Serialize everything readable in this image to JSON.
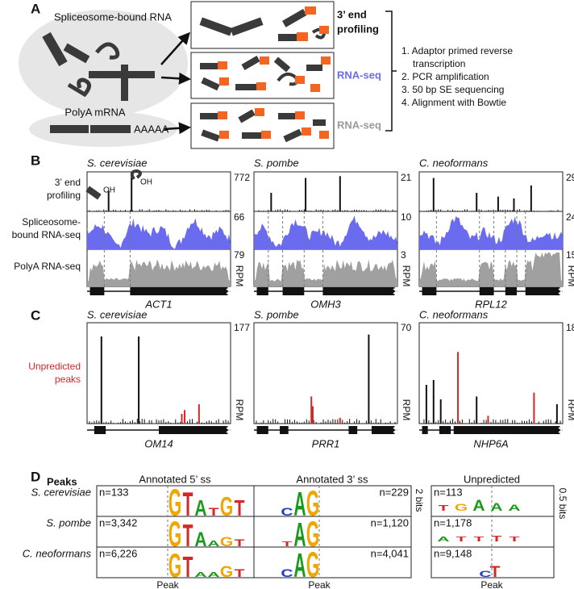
{
  "panel_a": {
    "label": "A",
    "sources": [
      "Spliceosome-bound RNA",
      "PolyA mRNA"
    ],
    "polya_tail": "AAAAA",
    "method_top": [
      "3’ end",
      "profiling"
    ],
    "method_mid": "RNA-seq",
    "method_bottom": "RNA-seq",
    "steps": [
      "1. Adaptor primed reverse",
      "transcription",
      "2. PCR amplification",
      "3. 50 bp SE sequencing",
      "4. Alignment with Bowtie"
    ]
  },
  "panel_b": {
    "label": "B",
    "oh": "OH",
    "unit": "RPM",
    "tracks": [
      [
        "3’ end",
        "profiling"
      ],
      [
        "Spliceosome-",
        "bound RNA-seq"
      ],
      [
        "PolyA RNA-seq"
      ]
    ],
    "columns": [
      {
        "species": "S. cerevisiae",
        "gene": "ACT1",
        "max": [
          772,
          66,
          79
        ]
      },
      {
        "species": "S. pombe",
        "gene": "OMH3",
        "max": [
          21,
          10,
          3
        ]
      },
      {
        "species": "C. neoformans",
        "gene": "RPL12",
        "max": [
          29,
          24,
          15
        ]
      }
    ]
  },
  "panel_c": {
    "label": "C",
    "track_label": [
      "Unpredicted",
      "peaks"
    ],
    "unit": "RPM",
    "columns": [
      {
        "species": "S. cerevisiae",
        "gene": "OM14",
        "max": 177
      },
      {
        "species": "S. pombe",
        "gene": "PRR1",
        "max": 70
      },
      {
        "species": "C. neoformans",
        "gene": "NHP6A",
        "max": 18
      }
    ]
  },
  "panel_d": {
    "label": "D",
    "header": "Peaks",
    "columns": [
      "Annotated 5’ ss",
      "Annotated 3’ ss",
      "Unpredicted"
    ],
    "scale": [
      "2 bits",
      "0.5 bits"
    ],
    "peak_label": "Peak",
    "rows": [
      {
        "species": "S. cerevisiae",
        "n": [
          "n=133",
          "n=229",
          "n=113"
        ],
        "logo5": [
          "G",
          "T",
          "A",
          "T",
          "G",
          "T"
        ],
        "logo3": [
          "C",
          "A",
          "G"
        ],
        "logo_u": [
          "T",
          "G",
          "A",
          "A",
          "A"
        ]
      },
      {
        "species": "S. pombe",
        "n": [
          "n=3,342",
          "n=1,120",
          "n=1,178"
        ],
        "logo5": [
          "G",
          "T",
          "A",
          "A",
          "G",
          "T"
        ],
        "logo3": [
          "T",
          "A",
          "G"
        ],
        "logo_u": [
          "A",
          "T",
          "T",
          "T",
          "T"
        ]
      },
      {
        "species": "C. neoformans",
        "n": [
          "n=6,226",
          "n=4,041",
          "n=9,148"
        ],
        "logo5": [
          "G",
          "T",
          "A",
          "A",
          "G",
          "T"
        ],
        "logo3": [
          "C",
          "A",
          "G"
        ],
        "logo_u": [
          "C",
          "T"
        ]
      }
    ]
  }
}
